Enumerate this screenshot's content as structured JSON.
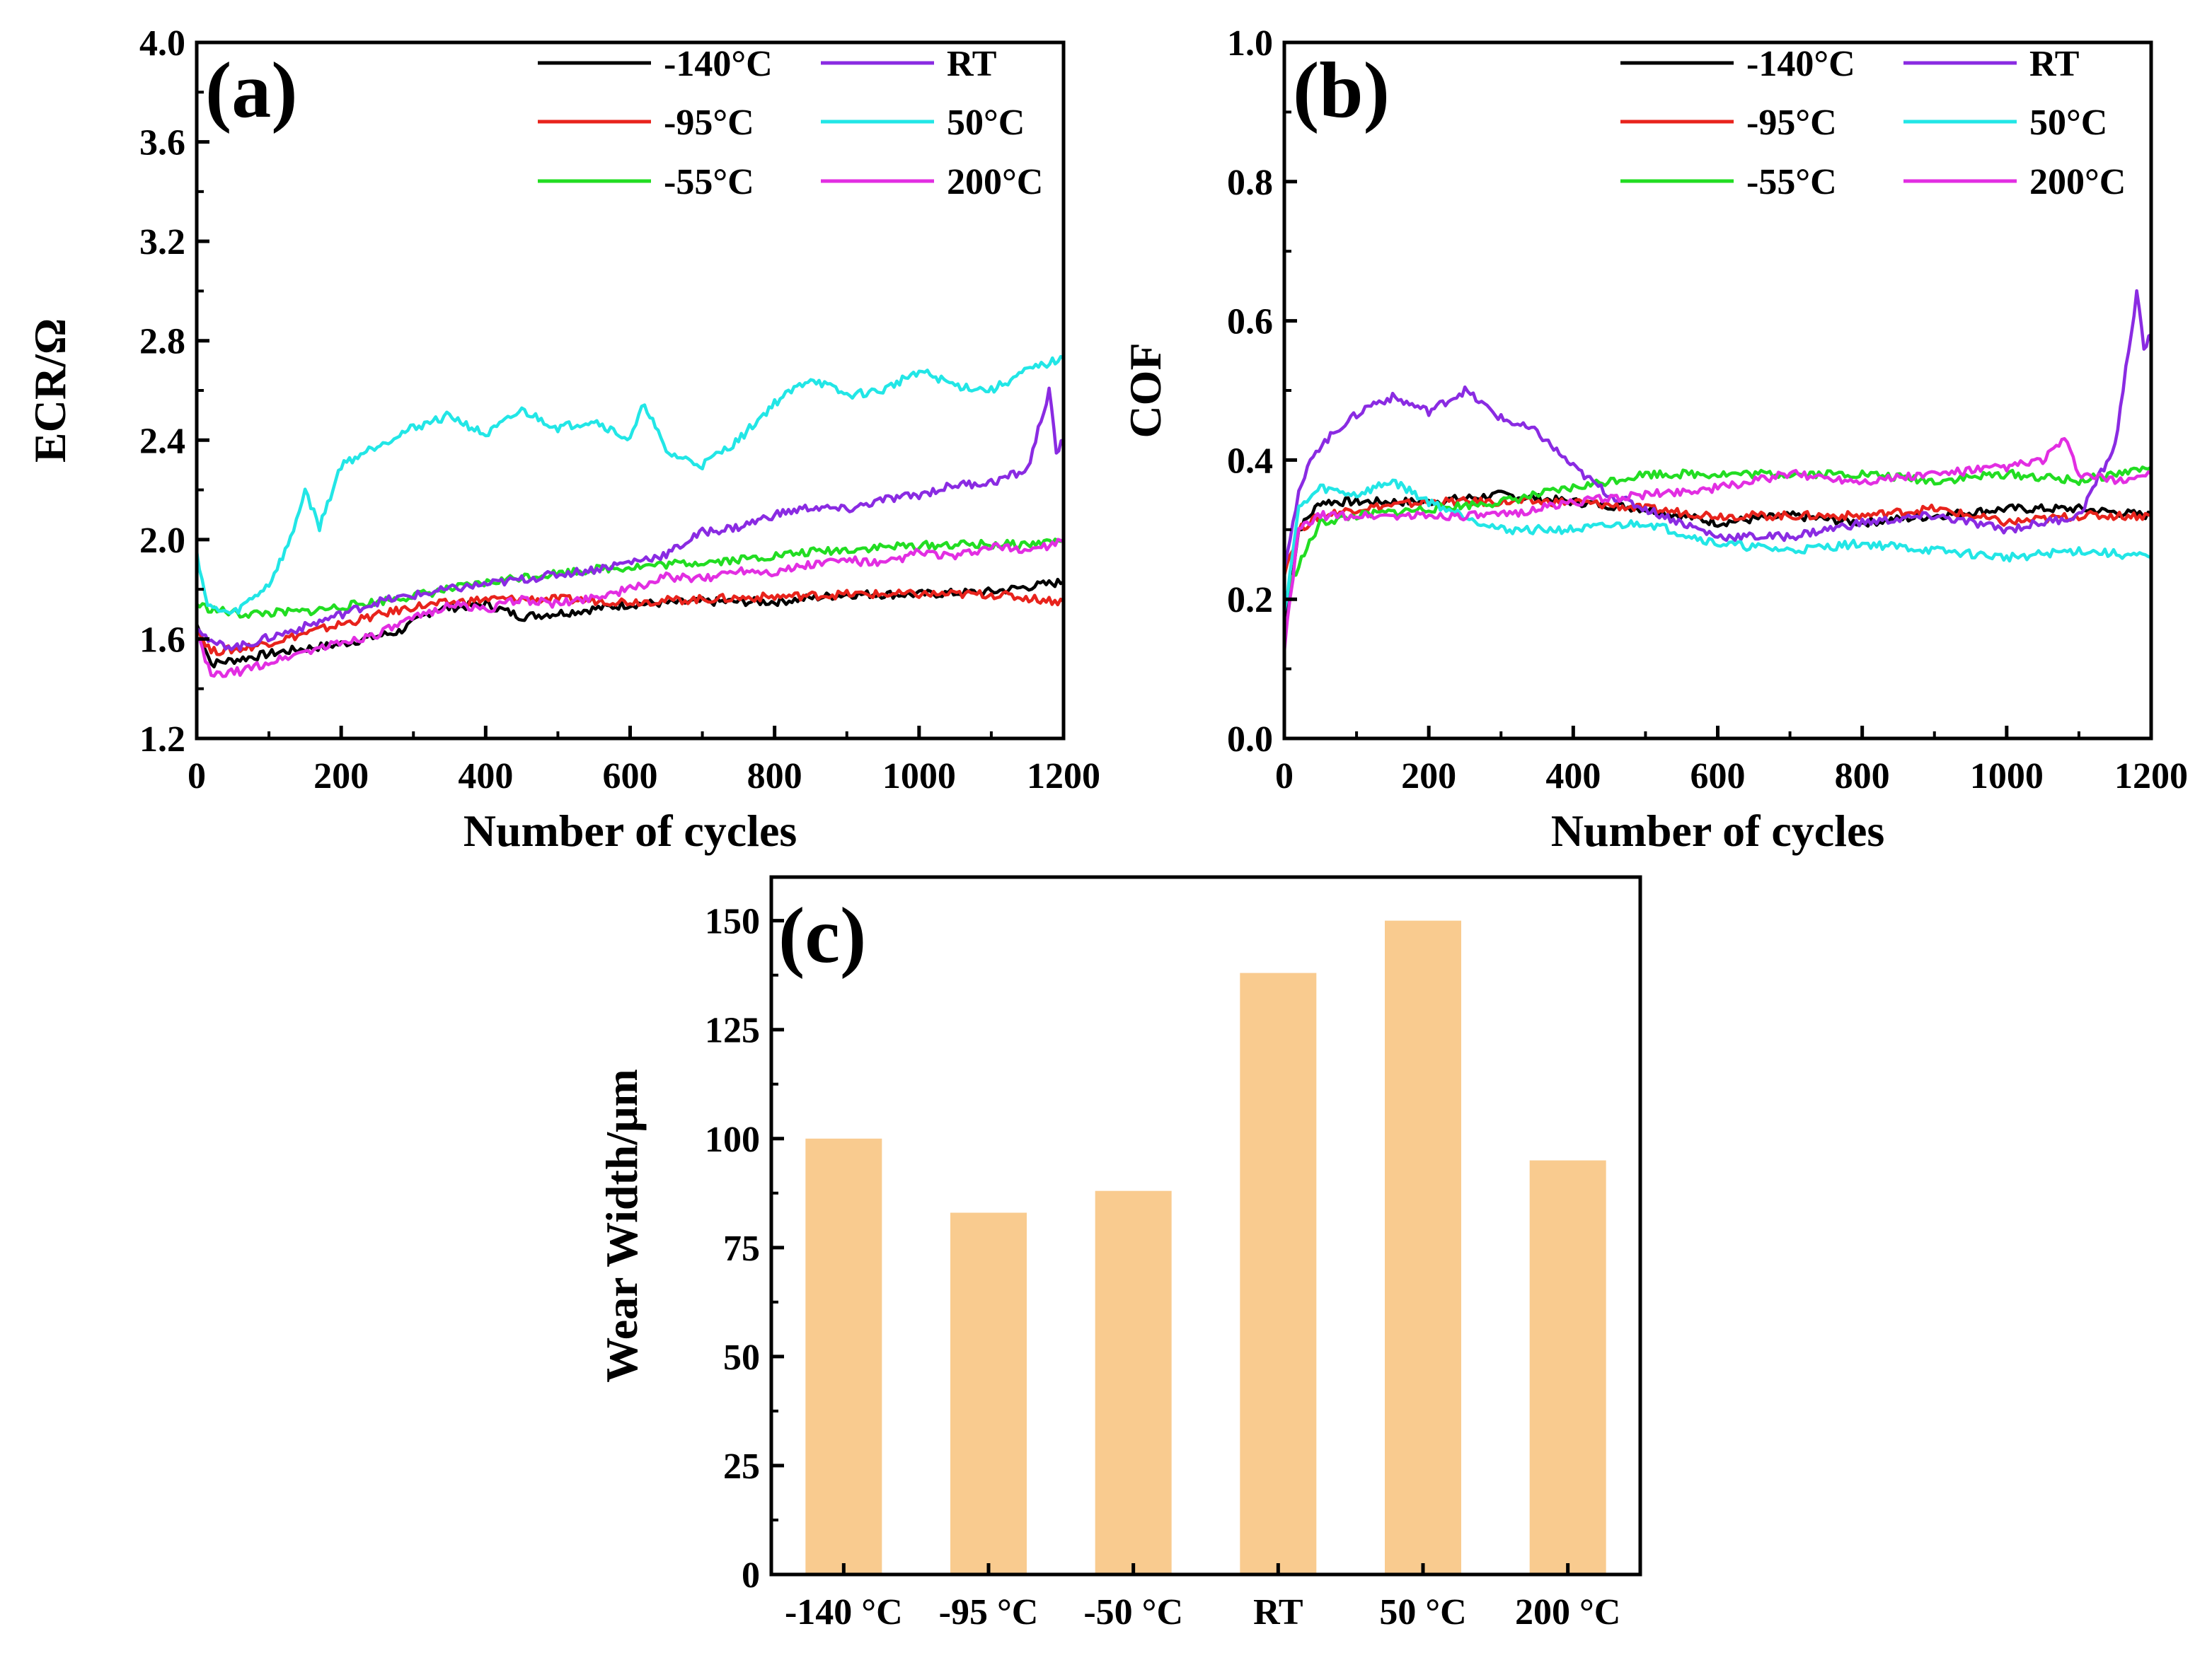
{
  "chart_data": [
    {
      "panel": "(a)",
      "type": "line",
      "xlabel": "Number of cycles",
      "ylabel": "ECR/Ω",
      "xlim": [
        0,
        1200
      ],
      "ylim": [
        1.2,
        4.0
      ],
      "xticks": [
        "0",
        "200",
        "400",
        "600",
        "800",
        "1000",
        "1200"
      ],
      "yticks": [
        "1.2",
        "1.6",
        "2.0",
        "2.4",
        "2.8",
        "3.2",
        "3.6",
        "4.0"
      ],
      "legend_position": "top-right",
      "series": [
        {
          "name": "-140°C",
          "color": "#000000",
          "x": [
            0,
            20,
            60,
            120,
            200,
            280,
            330,
            400,
            450,
            520,
            600,
            700,
            800,
            900,
            1000,
            1100,
            1200
          ],
          "y": [
            1.66,
            1.5,
            1.52,
            1.55,
            1.58,
            1.63,
            1.72,
            1.74,
            1.69,
            1.71,
            1.74,
            1.75,
            1.75,
            1.78,
            1.78,
            1.79,
            1.83
          ]
        },
        {
          "name": "-95°C",
          "color": "#e8231c",
          "x": [
            0,
            20,
            60,
            120,
            200,
            300,
            400,
            500,
            600,
            700,
            800,
            900,
            1000,
            1100,
            1200
          ],
          "y": [
            1.64,
            1.55,
            1.56,
            1.6,
            1.66,
            1.73,
            1.76,
            1.76,
            1.75,
            1.76,
            1.77,
            1.78,
            1.78,
            1.78,
            1.75
          ]
        },
        {
          "name": "-55°C",
          "color": "#22dd22",
          "x": [
            0,
            20,
            60,
            150,
            250,
            350,
            450,
            550,
            650,
            750,
            850,
            950,
            1050,
            1150,
            1200
          ],
          "y": [
            1.74,
            1.72,
            1.7,
            1.71,
            1.75,
            1.8,
            1.85,
            1.88,
            1.9,
            1.92,
            1.95,
            1.97,
            1.98,
            1.98,
            2.0
          ]
        },
        {
          "name": "RT",
          "color": "#8a2be2",
          "x": [
            0,
            20,
            60,
            150,
            250,
            350,
            450,
            550,
            650,
            700,
            750,
            800,
            850,
            900,
            950,
            1000,
            1050,
            1100,
            1150,
            1180,
            1190,
            1200
          ],
          "y": [
            1.66,
            1.58,
            1.57,
            1.65,
            1.75,
            1.8,
            1.84,
            1.88,
            1.94,
            2.03,
            2.05,
            2.1,
            2.13,
            2.12,
            2.16,
            2.18,
            2.22,
            2.23,
            2.28,
            2.6,
            2.35,
            2.4
          ]
        },
        {
          "name": "50°C",
          "color": "#22e6e6",
          "x": [
            0,
            15,
            50,
            100,
            130,
            150,
            170,
            200,
            250,
            300,
            350,
            400,
            450,
            500,
            550,
            600,
            620,
            650,
            700,
            750,
            800,
            850,
            900,
            950,
            1000,
            1050,
            1100,
            1150,
            1200
          ],
          "y": [
            1.95,
            1.73,
            1.7,
            1.82,
            2.0,
            2.2,
            2.05,
            2.3,
            2.38,
            2.45,
            2.5,
            2.42,
            2.52,
            2.45,
            2.48,
            2.4,
            2.55,
            2.35,
            2.3,
            2.4,
            2.55,
            2.65,
            2.58,
            2.6,
            2.68,
            2.62,
            2.6,
            2.68,
            2.73
          ]
        },
        {
          "name": "200°C",
          "color": "#e22ee2",
          "x": [
            0,
            20,
            60,
            150,
            250,
            350,
            400,
            450,
            500,
            550,
            600,
            650,
            700,
            750,
            800,
            850,
            900,
            950,
            1000,
            1050,
            1100,
            1150,
            1200
          ],
          "y": [
            1.62,
            1.45,
            1.47,
            1.55,
            1.62,
            1.74,
            1.72,
            1.76,
            1.74,
            1.77,
            1.8,
            1.85,
            1.84,
            1.88,
            1.87,
            1.9,
            1.92,
            1.9,
            1.95,
            1.93,
            1.97,
            1.96,
            1.99
          ]
        }
      ]
    },
    {
      "panel": "(b)",
      "type": "line",
      "xlabel": "Number of cycles",
      "ylabel": "COF",
      "xlim": [
        0,
        1200
      ],
      "ylim": [
        0.0,
        1.0
      ],
      "xticks": [
        "0",
        "200",
        "400",
        "600",
        "800",
        "1000",
        "1200"
      ],
      "yticks": [
        "0.0",
        "0.2",
        "0.4",
        "0.6",
        "0.8",
        "1.0"
      ],
      "legend_position": "top-right",
      "series": [
        {
          "name": "-140°C",
          "color": "#000000",
          "x": [
            0,
            20,
            50,
            100,
            200,
            300,
            400,
            500,
            600,
            700,
            800,
            900,
            1000,
            1100,
            1200
          ],
          "y": [
            0.15,
            0.3,
            0.34,
            0.34,
            0.34,
            0.35,
            0.34,
            0.33,
            0.31,
            0.32,
            0.31,
            0.32,
            0.33,
            0.33,
            0.32
          ]
        },
        {
          "name": "-95°C",
          "color": "#e8231c",
          "x": [
            0,
            20,
            50,
            100,
            200,
            300,
            400,
            500,
            600,
            700,
            800,
            900,
            1000,
            1100,
            1200
          ],
          "y": [
            0.24,
            0.3,
            0.32,
            0.33,
            0.34,
            0.34,
            0.34,
            0.33,
            0.32,
            0.32,
            0.32,
            0.33,
            0.31,
            0.32,
            0.32
          ]
        },
        {
          "name": "-55°C",
          "color": "#22dd22",
          "x": [
            0,
            20,
            50,
            100,
            200,
            300,
            400,
            500,
            600,
            700,
            800,
            900,
            1000,
            1100,
            1200
          ],
          "y": [
            0.2,
            0.25,
            0.31,
            0.32,
            0.33,
            0.34,
            0.36,
            0.38,
            0.38,
            0.38,
            0.38,
            0.37,
            0.38,
            0.37,
            0.39
          ]
        },
        {
          "name": "RT",
          "color": "#8a2be2",
          "x": [
            0,
            20,
            40,
            80,
            120,
            150,
            200,
            250,
            300,
            350,
            400,
            450,
            500,
            550,
            600,
            700,
            800,
            900,
            1000,
            1100,
            1150,
            1180,
            1190,
            1200
          ],
          "y": [
            0.25,
            0.35,
            0.41,
            0.45,
            0.48,
            0.49,
            0.47,
            0.5,
            0.46,
            0.44,
            0.39,
            0.35,
            0.33,
            0.31,
            0.29,
            0.29,
            0.31,
            0.32,
            0.3,
            0.32,
            0.42,
            0.64,
            0.56,
            0.58
          ]
        },
        {
          "name": "50°C",
          "color": "#22e6e6",
          "x": [
            0,
            20,
            50,
            100,
            150,
            200,
            300,
            400,
            500,
            600,
            700,
            800,
            900,
            1000,
            1100,
            1200
          ],
          "y": [
            0.18,
            0.33,
            0.36,
            0.35,
            0.37,
            0.34,
            0.3,
            0.3,
            0.31,
            0.28,
            0.27,
            0.28,
            0.27,
            0.26,
            0.27,
            0.26
          ]
        },
        {
          "name": "200°C",
          "color": "#e22ee2",
          "x": [
            0,
            20,
            50,
            100,
            200,
            300,
            400,
            500,
            600,
            700,
            800,
            900,
            1000,
            1050,
            1080,
            1100,
            1150,
            1200
          ],
          "y": [
            0.13,
            0.3,
            0.32,
            0.32,
            0.32,
            0.32,
            0.34,
            0.35,
            0.36,
            0.38,
            0.37,
            0.38,
            0.39,
            0.4,
            0.43,
            0.38,
            0.37,
            0.38
          ]
        }
      ]
    },
    {
      "panel": "(c)",
      "type": "bar",
      "xlabel": "",
      "ylabel": "Wear Width/μm",
      "ylim": [
        0,
        160
      ],
      "yticks": [
        "0",
        "25",
        "50",
        "75",
        "100",
        "125",
        "150"
      ],
      "categories": [
        "-140 °C",
        "-95 °C",
        "-50 °C",
        "RT",
        "50 °C",
        "200 °C"
      ],
      "values": [
        100,
        83,
        88,
        138,
        150,
        95
      ],
      "color": "#f9cb8f"
    }
  ]
}
